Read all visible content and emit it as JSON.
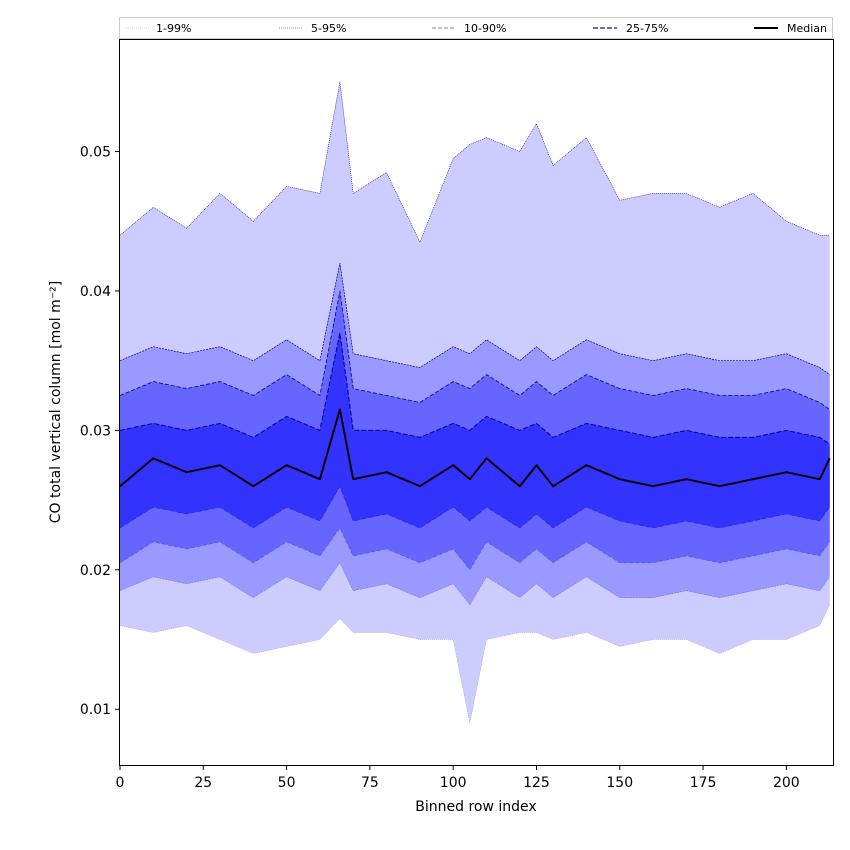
{
  "chart_data": {
    "type": "area",
    "title": "",
    "xlabel": "Binned row index",
    "ylabel": "CO total vertical column [mol m⁻²]",
    "xlim": [
      0,
      214
    ],
    "ylim": [
      0.006,
      0.058
    ],
    "xticks": [
      0,
      25,
      50,
      75,
      100,
      125,
      150,
      175,
      200
    ],
    "xtick_labels": [
      "0",
      "25",
      "50",
      "75",
      "100",
      "125",
      "150",
      "175",
      "200"
    ],
    "yticks": [
      0.01,
      0.02,
      0.03,
      0.04,
      0.05
    ],
    "ytick_labels": [
      "0.01",
      "0.02",
      "0.03",
      "0.04",
      "0.05"
    ],
    "grid": false,
    "legend_position": "top, above plot (5 columns)",
    "legend": [
      "1-99%",
      "5-95%",
      "10-90%",
      "25-75%",
      "Median"
    ],
    "colors": {
      "band_1_99": "#ccccff",
      "band_5_95": "#9999ff",
      "band_10_90": "#6666ff",
      "band_25_75": "#3333ff",
      "edge": "#00008b",
      "median": "#000000"
    },
    "x": [
      0,
      10,
      20,
      30,
      40,
      50,
      60,
      66,
      70,
      80,
      90,
      100,
      105,
      110,
      120,
      125,
      130,
      140,
      150,
      160,
      170,
      180,
      190,
      200,
      210,
      213
    ],
    "series": [
      {
        "name": "1-99%",
        "band": "upper",
        "values": [
          0.044,
          0.046,
          0.0445,
          0.047,
          0.045,
          0.0475,
          0.047,
          0.055,
          0.047,
          0.0485,
          0.0435,
          0.0495,
          0.0505,
          0.051,
          0.05,
          0.052,
          0.049,
          0.051,
          0.0465,
          0.047,
          0.047,
          0.046,
          0.047,
          0.045,
          0.044,
          0.044
        ]
      },
      {
        "name": "5-95%",
        "band": "upper",
        "values": [
          0.035,
          0.036,
          0.0355,
          0.036,
          0.035,
          0.0365,
          0.035,
          0.042,
          0.0355,
          0.035,
          0.0345,
          0.036,
          0.0355,
          0.0365,
          0.035,
          0.036,
          0.035,
          0.0365,
          0.0355,
          0.035,
          0.0355,
          0.035,
          0.035,
          0.0355,
          0.0345,
          0.034
        ]
      },
      {
        "name": "10-90%",
        "band": "upper",
        "values": [
          0.0325,
          0.0335,
          0.033,
          0.0335,
          0.0325,
          0.034,
          0.0325,
          0.04,
          0.033,
          0.0325,
          0.032,
          0.0335,
          0.033,
          0.034,
          0.0325,
          0.0335,
          0.0325,
          0.034,
          0.033,
          0.0325,
          0.033,
          0.0325,
          0.0325,
          0.033,
          0.032,
          0.0315
        ]
      },
      {
        "name": "25-75%",
        "band": "upper",
        "values": [
          0.03,
          0.0305,
          0.03,
          0.0305,
          0.0295,
          0.031,
          0.03,
          0.037,
          0.03,
          0.03,
          0.0295,
          0.0305,
          0.03,
          0.031,
          0.03,
          0.0305,
          0.0295,
          0.0305,
          0.03,
          0.0295,
          0.03,
          0.0295,
          0.0295,
          0.03,
          0.0295,
          0.029
        ]
      },
      {
        "name": "Median",
        "values": [
          0.026,
          0.028,
          0.027,
          0.0275,
          0.026,
          0.0275,
          0.0265,
          0.0315,
          0.0265,
          0.027,
          0.026,
          0.0275,
          0.0265,
          0.028,
          0.026,
          0.0275,
          0.026,
          0.0275,
          0.0265,
          0.026,
          0.0265,
          0.026,
          0.0265,
          0.027,
          0.0265,
          0.028
        ]
      },
      {
        "name": "25-75%",
        "band": "lower",
        "values": [
          0.023,
          0.0245,
          0.024,
          0.0245,
          0.023,
          0.0245,
          0.0235,
          0.026,
          0.0235,
          0.024,
          0.023,
          0.0245,
          0.0235,
          0.0245,
          0.023,
          0.024,
          0.023,
          0.0245,
          0.0235,
          0.023,
          0.0235,
          0.023,
          0.0235,
          0.024,
          0.0235,
          0.0245
        ]
      },
      {
        "name": "10-90%",
        "band": "lower",
        "values": [
          0.0205,
          0.022,
          0.0215,
          0.022,
          0.0205,
          0.022,
          0.021,
          0.023,
          0.021,
          0.0215,
          0.0205,
          0.0215,
          0.02,
          0.022,
          0.0205,
          0.0215,
          0.0205,
          0.022,
          0.0205,
          0.0205,
          0.021,
          0.0205,
          0.021,
          0.0215,
          0.021,
          0.022
        ]
      },
      {
        "name": "5-95%",
        "band": "lower",
        "values": [
          0.0185,
          0.0195,
          0.019,
          0.0195,
          0.018,
          0.0195,
          0.0185,
          0.0205,
          0.0185,
          0.019,
          0.018,
          0.019,
          0.0175,
          0.0195,
          0.018,
          0.019,
          0.018,
          0.0195,
          0.018,
          0.018,
          0.0185,
          0.018,
          0.0185,
          0.019,
          0.0185,
          0.0195
        ]
      },
      {
        "name": "1-99%",
        "band": "lower",
        "values": [
          0.016,
          0.0155,
          0.016,
          0.015,
          0.014,
          0.0145,
          0.015,
          0.0165,
          0.0155,
          0.0155,
          0.015,
          0.015,
          0.009,
          0.015,
          0.0155,
          0.0155,
          0.015,
          0.0155,
          0.0145,
          0.015,
          0.015,
          0.014,
          0.015,
          0.015,
          0.016,
          0.0175
        ]
      }
    ]
  }
}
